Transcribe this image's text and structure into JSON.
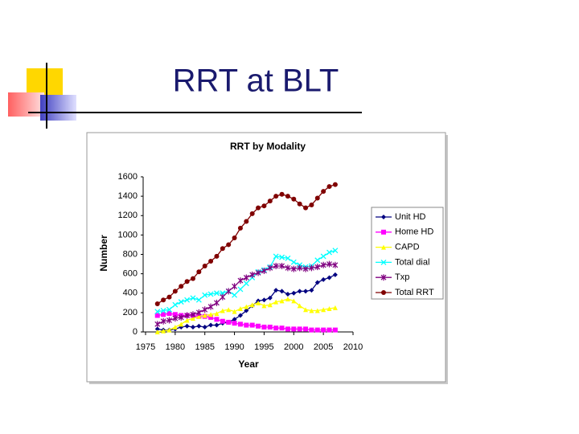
{
  "slide_title": "RRT at BLT",
  "chart_data": {
    "type": "line",
    "title": "RRT by Modality",
    "x_label": "Year",
    "y_label": "Number",
    "x": [
      1977,
      1978,
      1979,
      1980,
      1981,
      1982,
      1983,
      1984,
      1985,
      1986,
      1987,
      1988,
      1989,
      1990,
      1991,
      1992,
      1993,
      1994,
      1995,
      1996,
      1997,
      1998,
      1999,
      2000,
      2001,
      2002,
      2003,
      2004,
      2005,
      2006,
      2007
    ],
    "series": [
      {
        "name": "Unit HD",
        "color": "#000080",
        "marker": "diamond",
        "values": [
          30,
          20,
          20,
          30,
          50,
          60,
          50,
          60,
          50,
          70,
          70,
          90,
          100,
          130,
          170,
          220,
          270,
          320,
          330,
          350,
          430,
          420,
          390,
          400,
          420,
          420,
          430,
          510,
          540,
          560,
          590
        ]
      },
      {
        "name": "Home HD",
        "color": "#ff00ff",
        "marker": "square",
        "values": [
          170,
          180,
          190,
          180,
          170,
          170,
          170,
          160,
          160,
          150,
          130,
          110,
          100,
          90,
          80,
          70,
          70,
          60,
          50,
          50,
          40,
          40,
          30,
          30,
          30,
          30,
          20,
          20,
          20,
          20,
          20
        ]
      },
      {
        "name": "CAPD",
        "color": "#ffff00",
        "marker": "triangle",
        "values": [
          0,
          10,
          20,
          50,
          80,
          120,
          140,
          160,
          170,
          180,
          190,
          220,
          230,
          210,
          240,
          260,
          280,
          300,
          270,
          280,
          310,
          320,
          340,
          320,
          270,
          230,
          220,
          220,
          230,
          240,
          250
        ]
      },
      {
        "name": "Total dial",
        "color": "#00ffff",
        "marker": "x",
        "values": [
          210,
          220,
          230,
          280,
          310,
          330,
          350,
          330,
          380,
          390,
          400,
          400,
          420,
          380,
          440,
          500,
          560,
          620,
          640,
          670,
          780,
          770,
          760,
          720,
          690,
          670,
          680,
          740,
          780,
          820,
          840
        ]
      },
      {
        "name": "Txp",
        "color": "#800080",
        "marker": "star",
        "values": [
          80,
          110,
          120,
          140,
          150,
          170,
          180,
          200,
          230,
          260,
          300,
          360,
          420,
          470,
          530,
          560,
          590,
          610,
          630,
          660,
          680,
          680,
          660,
          650,
          660,
          650,
          660,
          670,
          690,
          700,
          690
        ]
      },
      {
        "name": "Total RRT",
        "color": "#800000",
        "marker": "circle",
        "values": [
          290,
          330,
          360,
          420,
          470,
          520,
          550,
          620,
          680,
          730,
          780,
          860,
          900,
          970,
          1070,
          1140,
          1220,
          1280,
          1300,
          1350,
          1400,
          1420,
          1400,
          1370,
          1320,
          1280,
          1310,
          1380,
          1450,
          1500,
          1520
        ]
      }
    ],
    "xlim": [
      1975,
      2010
    ],
    "xticks": [
      1975,
      1980,
      1985,
      1990,
      1995,
      2000,
      2005,
      2010
    ],
    "ylim": [
      0,
      1600
    ],
    "yticks": [
      0,
      200,
      400,
      600,
      800,
      1000,
      1200,
      1400,
      1600
    ],
    "grid": false,
    "legend": "right"
  }
}
